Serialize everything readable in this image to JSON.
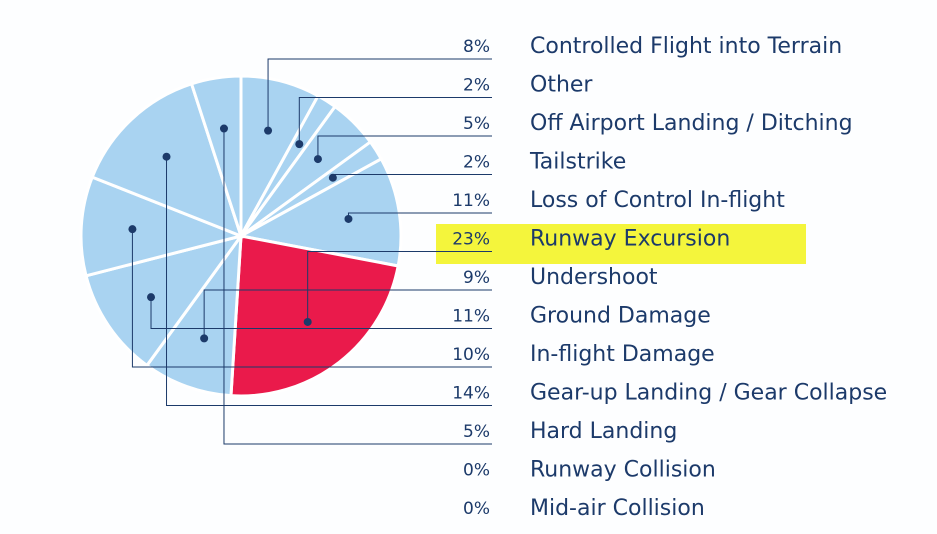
{
  "chart_data": {
    "type": "pie",
    "categories": [
      "Controlled Flight into Terrain",
      "Other",
      "Off Airport Landing / Ditching",
      "Tailstrike",
      "Loss of Control In-flight",
      "Runway Excursion",
      "Undershoot",
      "Ground Damage",
      "In-flight Damage",
      "Gear-up Landing / Gear Collapse",
      "Hard Landing",
      "Runway Collision",
      "Mid-air Collision"
    ],
    "values": [
      8,
      2,
      5,
      2,
      11,
      23,
      9,
      11,
      10,
      14,
      5,
      0,
      0
    ],
    "value_labels": [
      "8%",
      "2%",
      "5%",
      "2%",
      "11%",
      "23%",
      "9%",
      "11%",
      "10%",
      "14%",
      "5%",
      "0%",
      "0%"
    ],
    "colors": [
      "#a9d3f1",
      "#a9d3f1",
      "#a9d3f1",
      "#a9d3f1",
      "#a9d3f1",
      "#ea1a4b",
      "#a9d3f1",
      "#a9d3f1",
      "#a9d3f1",
      "#a9d3f1",
      "#a9d3f1",
      "#a9d3f1",
      "#a9d3f1"
    ]
  }
}
